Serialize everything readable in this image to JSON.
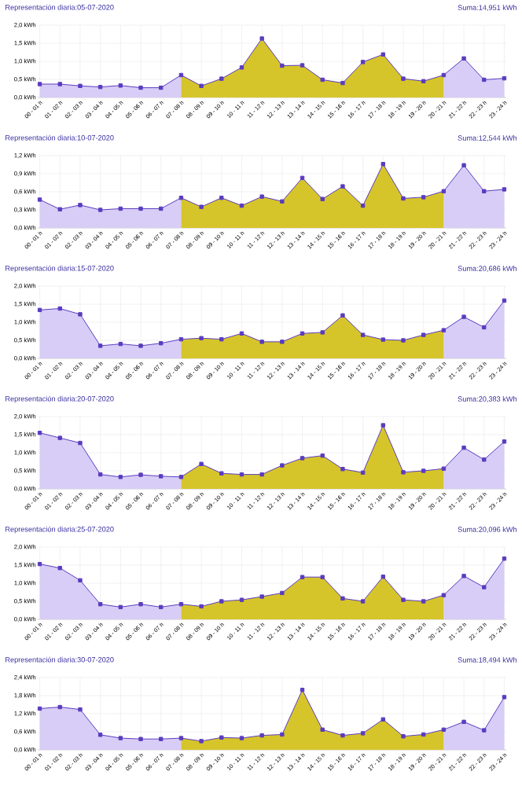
{
  "chart_data": [
    {
      "type": "area",
      "title": "Representación diaria:05-07-2020",
      "subtitle": "Suma:14,951 kWh",
      "categories": [
        "00 - 01 h",
        "01 - 02 h",
        "02 - 03 h",
        "03 - 04 h",
        "04 - 05 h",
        "05 - 06 h",
        "06 - 07 h",
        "07 - 08 h",
        "08 - 09 h",
        "09 - 10 h",
        "10 - 11 h",
        "11 - 12 h",
        "12 - 13 h",
        "13 - 14 h",
        "14 - 15 h",
        "15 - 16 h",
        "16 - 17 h",
        "17 - 18 h",
        "18 - 19 h",
        "19 - 20 h",
        "20 - 21 h",
        "21 - 22 h",
        "22 - 23 h",
        "23 - 24 h"
      ],
      "series": [
        {
          "type": "area",
          "color": "#d8cdf6",
          "values": [
            0.37,
            0.37,
            0.32,
            0.29,
            0.33,
            0.27,
            0.27,
            0.62,
            null,
            null,
            null,
            null,
            null,
            null,
            null,
            null,
            null,
            null,
            null,
            null,
            0.62,
            1.08,
            0.49,
            0.53
          ]
        },
        {
          "type": "area",
          "color": "#d6c52a",
          "values": [
            null,
            null,
            null,
            null,
            null,
            null,
            null,
            0.62,
            0.32,
            0.52,
            0.83,
            1.63,
            0.88,
            0.89,
            0.49,
            0.4,
            0.98,
            1.19,
            0.52,
            0.45,
            0.62,
            null,
            null,
            null
          ]
        },
        {
          "type": "line",
          "marker": "square",
          "color": "#5a3cc0",
          "values": [
            0.37,
            0.37,
            0.32,
            0.29,
            0.33,
            0.27,
            0.27,
            0.62,
            0.32,
            0.52,
            0.83,
            1.63,
            0.88,
            0.89,
            0.49,
            0.4,
            0.98,
            1.19,
            0.52,
            0.45,
            0.62,
            1.08,
            0.49,
            0.53
          ]
        }
      ],
      "ylim": [
        0,
        2
      ],
      "yticks": [
        {
          "value": 0,
          "label": "0,0 kWh"
        },
        {
          "value": 0.5,
          "label": "0,5 kWh"
        },
        {
          "value": 1,
          "label": "1,0 kWh"
        },
        {
          "value": 1.5,
          "label": "1,5 kWh"
        },
        {
          "value": 2,
          "label": "2,0 kWh"
        }
      ],
      "grid": true
    },
    {
      "type": "area",
      "title": "Representación diaria:10-07-2020",
      "subtitle": "Suma:12,544 kWh",
      "categories": [
        "00 - 01 h",
        "01 - 02 h",
        "02 - 03 h",
        "03 - 04 h",
        "04 - 05 h",
        "05 - 06 h",
        "06 - 07 h",
        "07 - 08 h",
        "08 - 09 h",
        "09 - 10 h",
        "10 - 11 h",
        "11 - 12 h",
        "12 - 13 h",
        "13 - 14 h",
        "14 - 15 h",
        "15 - 16 h",
        "16 - 17 h",
        "17 - 18 h",
        "18 - 19 h",
        "19 - 20 h",
        "20 - 21 h",
        "21 - 22 h",
        "22 - 23 h",
        "23 - 24 h"
      ],
      "series": [
        {
          "type": "area",
          "color": "#d8cdf6",
          "values": [
            0.47,
            0.31,
            0.38,
            0.3,
            0.32,
            0.32,
            0.32,
            0.5,
            null,
            null,
            null,
            null,
            null,
            null,
            null,
            null,
            null,
            null,
            null,
            null,
            0.61,
            1.04,
            0.61,
            0.64
          ]
        },
        {
          "type": "area",
          "color": "#d6c52a",
          "values": [
            null,
            null,
            null,
            null,
            null,
            null,
            null,
            0.5,
            0.35,
            0.5,
            0.37,
            0.52,
            0.44,
            0.83,
            0.48,
            0.69,
            0.37,
            1.06,
            0.49,
            0.51,
            0.61,
            null,
            null,
            null
          ]
        },
        {
          "type": "line",
          "marker": "square",
          "color": "#5a3cc0",
          "values": [
            0.47,
            0.31,
            0.38,
            0.3,
            0.32,
            0.32,
            0.32,
            0.5,
            0.35,
            0.5,
            0.37,
            0.52,
            0.44,
            0.83,
            0.48,
            0.69,
            0.37,
            1.06,
            0.49,
            0.51,
            0.61,
            1.04,
            0.61,
            0.64
          ]
        }
      ],
      "ylim": [
        0,
        1.2
      ],
      "yticks": [
        {
          "value": 0,
          "label": "0,0 kWh"
        },
        {
          "value": 0.3,
          "label": "0,3 kWh"
        },
        {
          "value": 0.6,
          "label": "0,6 kWh"
        },
        {
          "value": 0.9,
          "label": "0,9 kWh"
        },
        {
          "value": 1.2,
          "label": "1,2 kWh"
        }
      ],
      "grid": true
    },
    {
      "type": "area",
      "title": "Representación diaria:15-07-2020",
      "subtitle": "Suma:20,686 kWh",
      "categories": [
        "00 - 01 h",
        "01 - 02 h",
        "02 - 03 h",
        "03 - 04 h",
        "04 - 05 h",
        "05 - 06 h",
        "06 - 07 h",
        "07 - 08 h",
        "08 - 09 h",
        "09 - 10 h",
        "10 - 11 h",
        "11 - 12 h",
        "12 - 13 h",
        "13 - 14 h",
        "14 - 15 h",
        "15 - 16 h",
        "16 - 17 h",
        "17 - 18 h",
        "18 - 19 h",
        "19 - 20 h",
        "20 - 21 h",
        "21 - 22 h",
        "22 - 23 h",
        "23 - 24 h"
      ],
      "series": [
        {
          "type": "area",
          "color": "#d8cdf6",
          "values": [
            1.34,
            1.38,
            1.22,
            0.35,
            0.4,
            0.35,
            0.42,
            0.53,
            null,
            null,
            null,
            null,
            null,
            null,
            null,
            null,
            null,
            null,
            null,
            null,
            0.78,
            1.15,
            0.86,
            1.6
          ]
        },
        {
          "type": "area",
          "color": "#d6c52a",
          "values": [
            null,
            null,
            null,
            null,
            null,
            null,
            null,
            0.53,
            0.56,
            0.53,
            0.69,
            0.46,
            0.46,
            0.69,
            0.72,
            1.19,
            0.65,
            0.52,
            0.5,
            0.65,
            0.78,
            null,
            null,
            null
          ]
        },
        {
          "type": "line",
          "marker": "square",
          "color": "#5a3cc0",
          "values": [
            1.34,
            1.38,
            1.22,
            0.35,
            0.4,
            0.35,
            0.42,
            0.53,
            0.56,
            0.53,
            0.69,
            0.46,
            0.46,
            0.69,
            0.72,
            1.19,
            0.65,
            0.52,
            0.5,
            0.65,
            0.78,
            1.15,
            0.86,
            1.6
          ]
        }
      ],
      "ylim": [
        0,
        2
      ],
      "yticks": [
        {
          "value": 0,
          "label": "0,0 kWh"
        },
        {
          "value": 0.5,
          "label": "0,5 kWh"
        },
        {
          "value": 1,
          "label": "1,0 kWh"
        },
        {
          "value": 1.5,
          "label": "1,5 kWh"
        },
        {
          "value": 2,
          "label": "2,0 kWh"
        }
      ],
      "grid": true
    },
    {
      "type": "area",
      "title": "Representación diaria:20-07-2020",
      "subtitle": "Suma:20,383 kWh",
      "categories": [
        "00 - 01 h",
        "01 - 02 h",
        "02 - 03 h",
        "03 - 04 h",
        "04 - 05 h",
        "05 - 06 h",
        "06 - 07 h",
        "07 - 08 h",
        "08 - 09 h",
        "09 - 10 h",
        "10 - 11 h",
        "11 - 12 h",
        "12 - 13 h",
        "13 - 14 h",
        "14 - 15 h",
        "15 - 16 h",
        "16 - 17 h",
        "17 - 18 h",
        "18 - 19 h",
        "19 - 20 h",
        "20 - 21 h",
        "21 - 22 h",
        "22 - 23 h",
        "23 - 24 h"
      ],
      "series": [
        {
          "type": "area",
          "color": "#d8cdf6",
          "values": [
            1.55,
            1.41,
            1.27,
            0.4,
            0.33,
            0.39,
            0.35,
            0.33,
            null,
            null,
            null,
            null,
            null,
            null,
            null,
            null,
            null,
            null,
            null,
            null,
            0.56,
            1.14,
            0.81,
            1.31
          ]
        },
        {
          "type": "area",
          "color": "#d6c52a",
          "values": [
            null,
            null,
            null,
            null,
            null,
            null,
            null,
            0.33,
            0.69,
            0.43,
            0.4,
            0.4,
            0.65,
            0.85,
            0.92,
            0.55,
            0.45,
            1.76,
            0.46,
            0.5,
            0.56,
            null,
            null,
            null
          ]
        },
        {
          "type": "line",
          "marker": "square",
          "color": "#5a3cc0",
          "values": [
            1.55,
            1.41,
            1.27,
            0.4,
            0.33,
            0.39,
            0.35,
            0.33,
            0.69,
            0.43,
            0.4,
            0.4,
            0.65,
            0.85,
            0.92,
            0.55,
            0.45,
            1.76,
            0.46,
            0.5,
            0.56,
            1.14,
            0.81,
            1.31
          ]
        }
      ],
      "ylim": [
        0,
        2
      ],
      "yticks": [
        {
          "value": 0,
          "label": "0,0 kWh"
        },
        {
          "value": 0.5,
          "label": "0,5 kWh"
        },
        {
          "value": 1,
          "label": "1,0 kWh"
        },
        {
          "value": 1.5,
          "label": "1,5 kWh"
        },
        {
          "value": 2,
          "label": "2,0 kWh"
        }
      ],
      "grid": true
    },
    {
      "type": "area",
      "title": "Representación diaria:25-07-2020",
      "subtitle": "Suma:20,096 kWh",
      "categories": [
        "00 - 01 h",
        "01 - 02 h",
        "02 - 03 h",
        "03 - 04 h",
        "04 - 05 h",
        "05 - 06 h",
        "06 - 07 h",
        "07 - 08 h",
        "08 - 09 h",
        "09 - 10 h",
        "10 - 11 h",
        "11 - 12 h",
        "12 - 13 h",
        "13 - 14 h",
        "14 - 15 h",
        "15 - 16 h",
        "16 - 17 h",
        "17 - 18 h",
        "18 - 19 h",
        "19 - 20 h",
        "20 - 21 h",
        "21 - 22 h",
        "22 - 23 h",
        "23 - 24 h"
      ],
      "series": [
        {
          "type": "area",
          "color": "#d8cdf6",
          "values": [
            1.53,
            1.42,
            1.08,
            0.42,
            0.34,
            0.42,
            0.34,
            0.42,
            null,
            null,
            null,
            null,
            null,
            null,
            null,
            null,
            null,
            null,
            null,
            null,
            0.67,
            1.2,
            0.89,
            1.68
          ]
        },
        {
          "type": "area",
          "color": "#d6c52a",
          "values": [
            null,
            null,
            null,
            null,
            null,
            null,
            null,
            0.42,
            0.36,
            0.5,
            0.54,
            0.63,
            0.73,
            1.17,
            1.17,
            0.58,
            0.5,
            1.18,
            0.54,
            0.5,
            0.67,
            null,
            null,
            null
          ]
        },
        {
          "type": "line",
          "marker": "square",
          "color": "#5a3cc0",
          "values": [
            1.53,
            1.42,
            1.08,
            0.42,
            0.34,
            0.42,
            0.34,
            0.42,
            0.36,
            0.5,
            0.54,
            0.63,
            0.73,
            1.17,
            1.17,
            0.58,
            0.5,
            1.18,
            0.54,
            0.5,
            0.67,
            1.2,
            0.89,
            1.68
          ]
        }
      ],
      "ylim": [
        0,
        2
      ],
      "yticks": [
        {
          "value": 0,
          "label": "0,0 kWh"
        },
        {
          "value": 0.5,
          "label": "0,5 kWh"
        },
        {
          "value": 1,
          "label": "1,0 kWh"
        },
        {
          "value": 1.5,
          "label": "1,5 kWh"
        },
        {
          "value": 2,
          "label": "2,0 kWh"
        }
      ],
      "grid": true
    },
    {
      "type": "area",
      "title": "Representación diaria:30-07-2020",
      "subtitle": "Suma:18,494 kWh",
      "categories": [
        "00 - 01 h",
        "01 - 02 h",
        "02 - 03 h",
        "03 - 04 h",
        "04 - 05 h",
        "05 - 06 h",
        "06 - 07 h",
        "07 - 08 h",
        "08 - 09 h",
        "09 - 10 h",
        "10 - 11 h",
        "11 - 12 h",
        "12 - 13 h",
        "13 - 14 h",
        "14 - 15 h",
        "15 - 16 h",
        "16 - 17 h",
        "17 - 18 h",
        "18 - 19 h",
        "19 - 20 h",
        "20 - 21 h",
        "21 - 22 h",
        "22 - 23 h",
        "23 - 24 h"
      ],
      "series": [
        {
          "type": "area",
          "color": "#d8cdf6",
          "values": [
            1.37,
            1.42,
            1.34,
            0.5,
            0.39,
            0.36,
            0.36,
            0.39,
            null,
            null,
            null,
            null,
            null,
            null,
            null,
            null,
            null,
            null,
            null,
            null,
            0.67,
            0.93,
            0.65,
            1.75
          ]
        },
        {
          "type": "area",
          "color": "#d6c52a",
          "values": [
            null,
            null,
            null,
            null,
            null,
            null,
            null,
            0.39,
            0.29,
            0.41,
            0.39,
            0.48,
            0.51,
            1.99,
            0.67,
            0.48,
            0.55,
            1.01,
            0.45,
            0.51,
            0.67,
            null,
            null,
            null
          ]
        },
        {
          "type": "line",
          "marker": "square",
          "color": "#5a3cc0",
          "values": [
            1.37,
            1.42,
            1.34,
            0.5,
            0.39,
            0.36,
            0.36,
            0.39,
            0.29,
            0.41,
            0.39,
            0.48,
            0.51,
            1.99,
            0.67,
            0.48,
            0.55,
            1.01,
            0.45,
            0.51,
            0.67,
            0.93,
            0.65,
            1.75
          ]
        }
      ],
      "ylim": [
        0,
        2.4
      ],
      "yticks": [
        {
          "value": 0,
          "label": "0,0 kWh"
        },
        {
          "value": 0.6,
          "label": "0,6 kWh"
        },
        {
          "value": 1.2,
          "label": "1,2 kWh"
        },
        {
          "value": 1.8,
          "label": "1,8 kWh"
        },
        {
          "value": 2.4,
          "label": "2,4 kWh"
        }
      ],
      "grid": true
    }
  ]
}
